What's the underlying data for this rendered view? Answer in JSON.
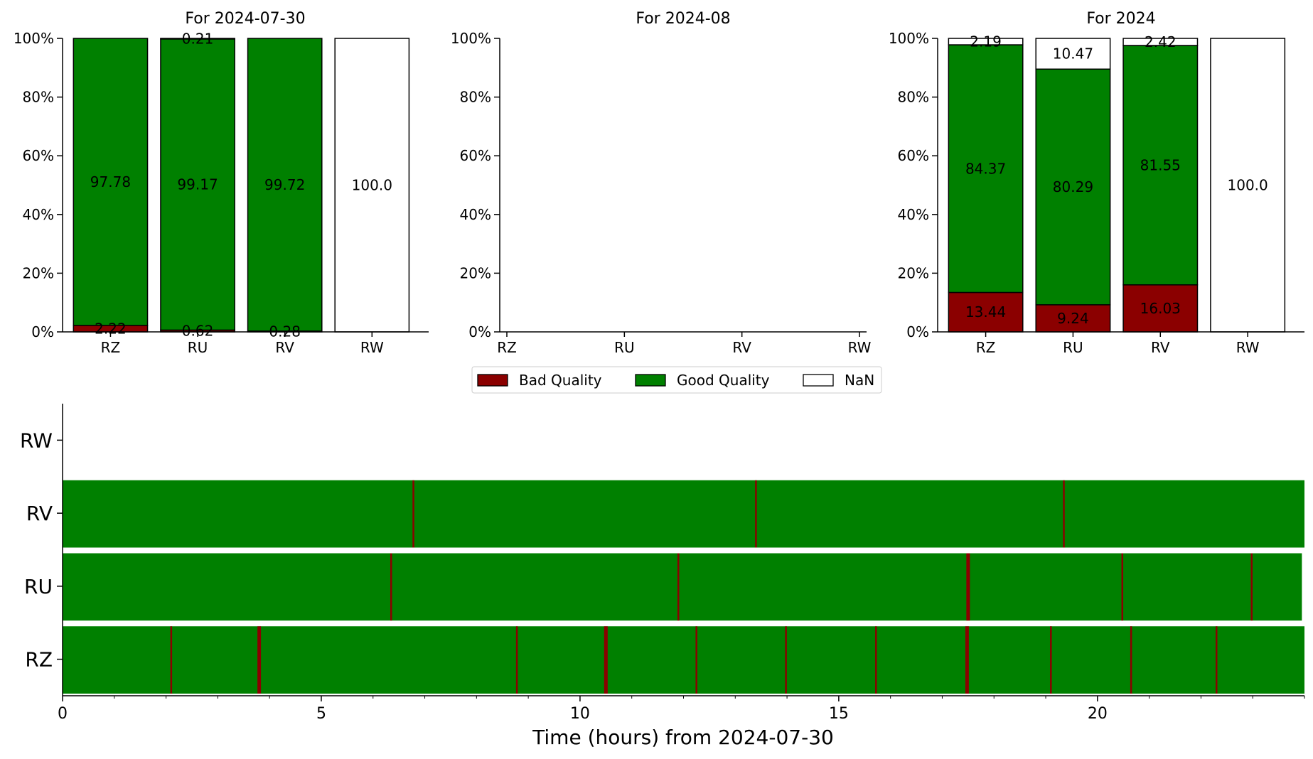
{
  "chart_data": [
    {
      "type": "bar",
      "stacked": true,
      "title": "For 2024-07-30",
      "categories": [
        "RZ",
        "RU",
        "RV",
        "RW"
      ],
      "ylim": [
        0,
        100
      ],
      "yticks": [
        "0%",
        "20%",
        "40%",
        "60%",
        "80%",
        "100%"
      ],
      "series": [
        {
          "name": "Bad Quality",
          "values": [
            2.22,
            0.62,
            0.28,
            0
          ],
          "labels": [
            "2.22",
            "0.62",
            "0.28",
            ""
          ]
        },
        {
          "name": "Good Quality",
          "values": [
            97.78,
            99.17,
            99.72,
            0
          ],
          "labels": [
            "97.78",
            "99.17",
            "99.72",
            ""
          ]
        },
        {
          "name": "NaN",
          "values": [
            0,
            0.21,
            0,
            100
          ],
          "labels": [
            "",
            "0.21",
            "",
            "100.0"
          ]
        }
      ]
    },
    {
      "type": "bar",
      "stacked": true,
      "title": "For 2024-08",
      "categories": [
        "RZ",
        "RU",
        "RV",
        "RW"
      ],
      "ylim": [
        0,
        100
      ],
      "yticks": [
        "0%",
        "20%",
        "40%",
        "60%",
        "80%",
        "100%"
      ],
      "series": [
        {
          "name": "Bad Quality",
          "values": [
            0,
            0,
            0,
            0
          ],
          "labels": [
            "",
            "",
            "",
            ""
          ]
        },
        {
          "name": "Good Quality",
          "values": [
            0,
            0,
            0,
            0
          ],
          "labels": [
            "",
            "",
            "",
            ""
          ]
        },
        {
          "name": "NaN",
          "values": [
            0,
            0,
            0,
            0
          ],
          "labels": [
            "",
            "",
            "",
            ""
          ]
        }
      ]
    },
    {
      "type": "bar",
      "stacked": true,
      "title": "For 2024",
      "categories": [
        "RZ",
        "RU",
        "RV",
        "RW"
      ],
      "ylim": [
        0,
        100
      ],
      "yticks": [
        "0%",
        "20%",
        "40%",
        "60%",
        "80%",
        "100%"
      ],
      "series": [
        {
          "name": "Bad Quality",
          "values": [
            13.44,
            9.24,
            16.03,
            0
          ],
          "labels": [
            "13.44",
            "9.24",
            "16.03",
            ""
          ]
        },
        {
          "name": "Good Quality",
          "values": [
            84.37,
            80.29,
            81.55,
            0
          ],
          "labels": [
            "84.37",
            "80.29",
            "81.55",
            ""
          ]
        },
        {
          "name": "NaN",
          "values": [
            2.19,
            10.47,
            2.42,
            100
          ],
          "labels": [
            "2.19",
            "10.47",
            "2.42",
            "100.0"
          ]
        }
      ]
    },
    {
      "type": "timeline",
      "xlabel": "Time (hours) from 2024-07-30",
      "xlim": [
        0,
        24
      ],
      "xticks": [
        0,
        5,
        10,
        15,
        20
      ],
      "rows": [
        "RW",
        "RV",
        "RU",
        "RZ"
      ],
      "row_data": [
        {
          "name": "RW",
          "good_range": null,
          "bad_events": []
        },
        {
          "name": "RV",
          "good_range": [
            0,
            24
          ],
          "bad_events": [
            6.78,
            13.4,
            19.35
          ]
        },
        {
          "name": "RU",
          "good_range": [
            0,
            23.95
          ],
          "bad_events": [
            6.35,
            11.9,
            17.5,
            20.48,
            22.98
          ]
        },
        {
          "name": "RZ",
          "good_range": [
            0,
            24
          ],
          "bad_events": [
            2.1,
            3.8,
            8.78,
            10.5,
            12.25,
            13.98,
            15.72,
            17.48,
            19.1,
            20.65,
            22.3
          ]
        }
      ]
    }
  ],
  "legend": [
    {
      "name": "Bad Quality",
      "color": "#8b0000"
    },
    {
      "name": "Good Quality",
      "color": "#008000"
    },
    {
      "name": "NaN",
      "color": "#ffffff"
    }
  ],
  "colors": {
    "bad": "#8b0000",
    "good": "#008000",
    "nan": "#ffffff"
  }
}
